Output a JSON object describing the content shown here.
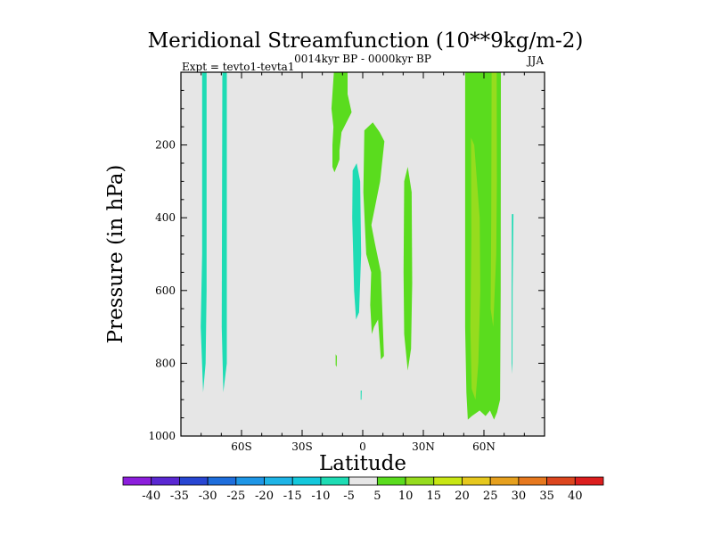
{
  "chart_data": {
    "type": "contour",
    "title": "Meridional Streamfunction (10**9kg/m-2)",
    "subtitle_center": "0014kyr BP - 0000kyr BP",
    "subtitle_left": "Expt = tevto1-tevta1",
    "subtitle_right": "JJA",
    "xlabel": "Latitude",
    "ylabel": "Pressure (in hPa)",
    "xlim": [
      -90,
      90
    ],
    "ylim": [
      1000,
      0
    ],
    "x_ticks": [
      -60,
      -30,
      0,
      30,
      60
    ],
    "x_tick_labels": [
      "60S",
      "30S",
      "0",
      "30N",
      "60N"
    ],
    "y_ticks": [
      200,
      400,
      600,
      800,
      1000
    ],
    "y_tick_labels": [
      "200",
      "400",
      "600",
      "800",
      "1000"
    ],
    "background_color": "#e6e6e6",
    "colorbar": {
      "labels": [
        "-40",
        "-35",
        "-30",
        "-25",
        "-20",
        "-15",
        "-10",
        "-5",
        "5",
        "10",
        "15",
        "20",
        "25",
        "30",
        "35",
        "40"
      ],
      "colors": [
        "#8c1edc",
        "#5a28d2",
        "#2846d2",
        "#1e6edc",
        "#1e96e6",
        "#1eb4e6",
        "#14c8dc",
        "#1edcb4",
        "#e6e6e6",
        "#5adc1e",
        "#96dc1e",
        "#c8e614",
        "#e6c81e",
        "#e6a01e",
        "#e6781e",
        "#dc461e",
        "#dc1e1e"
      ]
    },
    "regions": [
      {
        "name": "neg-column-77S",
        "level": -5,
        "color": "#1edcb4",
        "points": [
          [
            -79.5,
            0
          ],
          [
            -77.3,
            0
          ],
          [
            -77.3,
            600
          ],
          [
            -77.8,
            800
          ],
          [
            -79,
            880
          ],
          [
            -80.2,
            700
          ],
          [
            -79.5,
            500
          ]
        ]
      },
      {
        "name": "neg-column-70S",
        "level": -5,
        "color": "#1edcb4",
        "points": [
          [
            -69.5,
            0
          ],
          [
            -67.3,
            0
          ],
          [
            -67.3,
            800
          ],
          [
            -69,
            880
          ],
          [
            -69.8,
            700
          ]
        ]
      },
      {
        "name": "pos-plume-12S",
        "level": 5,
        "color": "#5adc1e",
        "points": [
          [
            -14.3,
            0
          ],
          [
            -7.5,
            0
          ],
          [
            -7.5,
            60
          ],
          [
            -5.5,
            110
          ],
          [
            -10.5,
            165
          ],
          [
            -11.5,
            215
          ],
          [
            -11.5,
            240
          ],
          [
            -12.5,
            255
          ],
          [
            -14,
            275
          ],
          [
            -15,
            260
          ],
          [
            -15,
            200
          ],
          [
            -14.5,
            150
          ],
          [
            -15.5,
            100
          ]
        ]
      },
      {
        "name": "neg-column-3S",
        "level": -5,
        "color": "#1edcb4",
        "points": [
          [
            -5,
            270
          ],
          [
            -3,
            250
          ],
          [
            -1.3,
            300
          ],
          [
            -0.8,
            500
          ],
          [
            -1.8,
            660
          ],
          [
            -3.3,
            680
          ],
          [
            -4.3,
            600
          ],
          [
            -5.2,
            400
          ]
        ]
      },
      {
        "name": "pos-column-5E",
        "level": 5,
        "color": "#5adc1e",
        "points": [
          [
            0.8,
            160
          ],
          [
            5,
            138
          ],
          [
            8.4,
            165
          ],
          [
            10.7,
            190
          ],
          [
            8.6,
            300
          ],
          [
            4.3,
            420
          ],
          [
            6,
            470
          ],
          [
            9,
            550
          ],
          [
            10.5,
            780
          ],
          [
            9,
            790
          ],
          [
            7.6,
            680
          ],
          [
            5.6,
            700
          ],
          [
            4.5,
            720
          ],
          [
            3.7,
            640
          ],
          [
            4.2,
            550
          ],
          [
            1.7,
            500
          ],
          [
            0.3,
            330
          ]
        ]
      },
      {
        "name": "pos-column-22N",
        "level": 5,
        "color": "#5adc1e",
        "points": [
          [
            20.5,
            300
          ],
          [
            22.3,
            260
          ],
          [
            24.2,
            330
          ],
          [
            24.5,
            580
          ],
          [
            23.9,
            760
          ],
          [
            22.3,
            820
          ],
          [
            20.5,
            720
          ],
          [
            20.2,
            550
          ]
        ]
      },
      {
        "name": "pos-band-60N",
        "level": 5,
        "color": "#5adc1e",
        "points": [
          [
            50.7,
            0
          ],
          [
            68.4,
            0
          ],
          [
            68.3,
            600
          ],
          [
            68,
            900
          ],
          [
            66.5,
            935
          ],
          [
            65,
            955
          ],
          [
            63,
            930
          ],
          [
            60.8,
            945
          ],
          [
            57.9,
            930
          ],
          [
            54,
            945
          ],
          [
            52,
            955
          ],
          [
            51.3,
            880
          ],
          [
            50.7,
            700
          ]
        ]
      },
      {
        "name": "pos-core-55N",
        "level": 10,
        "color": "#96dc1e",
        "points": [
          [
            53.6,
            180
          ],
          [
            55.2,
            200
          ],
          [
            57.9,
            400
          ],
          [
            58.2,
            600
          ],
          [
            57.2,
            800
          ],
          [
            55.8,
            900
          ],
          [
            53.9,
            870
          ],
          [
            53.3,
            700
          ],
          [
            53.8,
            450
          ]
        ]
      },
      {
        "name": "pos-core-66N",
        "level": 10,
        "color": "#96dc1e",
        "points": [
          [
            63.8,
            0
          ],
          [
            66.3,
            0
          ],
          [
            66.4,
            300
          ],
          [
            66.1,
            500
          ],
          [
            64.6,
            700
          ],
          [
            63.3,
            650
          ],
          [
            63.6,
            400
          ]
        ]
      },
      {
        "name": "neg-sliver-74N",
        "level": -5,
        "color": "#1edcb4",
        "points": [
          [
            73.8,
            390
          ],
          [
            74.6,
            390
          ],
          [
            74.2,
            600
          ],
          [
            74.1,
            800
          ],
          [
            73.7,
            830
          ],
          [
            73.7,
            600
          ]
        ]
      },
      {
        "name": "pos-speck-13S",
        "level": 5,
        "color": "#5adc1e",
        "points": [
          [
            -13.4,
            775
          ],
          [
            -12.8,
            780
          ],
          [
            -12.9,
            810
          ],
          [
            -13.4,
            805
          ]
        ]
      },
      {
        "name": "neg-speck-0",
        "level": -5,
        "color": "#1edcb4",
        "points": [
          [
            -1,
            875
          ],
          [
            -0.5,
            875
          ],
          [
            -0.6,
            900
          ],
          [
            -1,
            900
          ]
        ]
      }
    ]
  }
}
